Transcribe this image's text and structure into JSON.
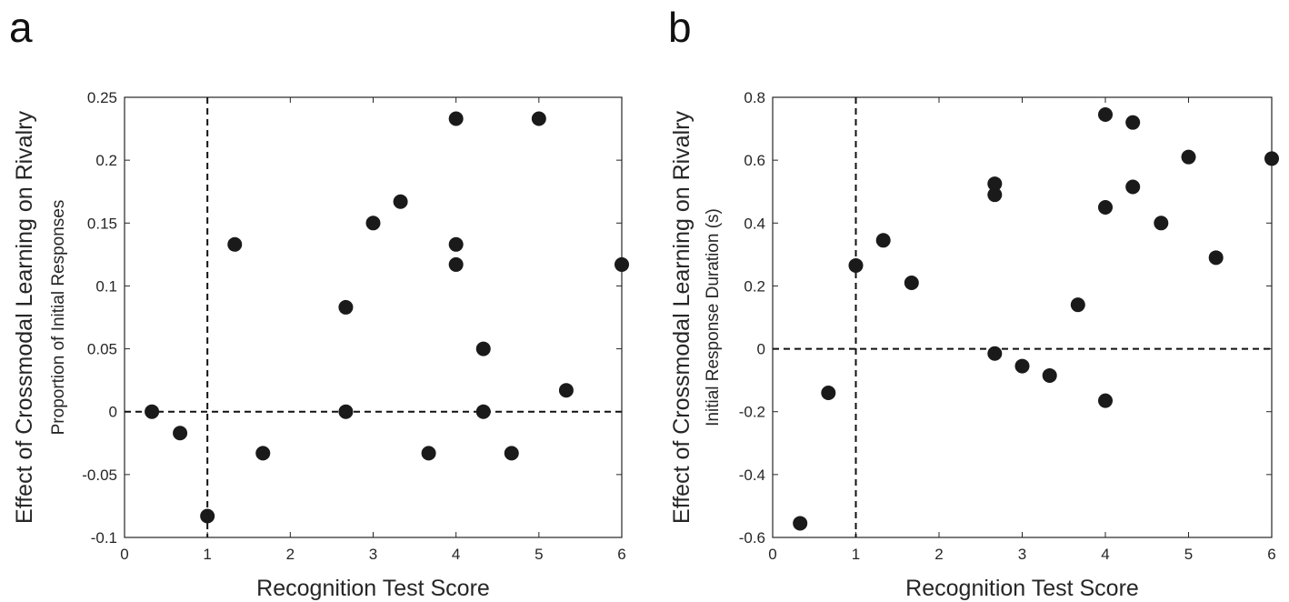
{
  "chart_data": [
    {
      "type": "scatter",
      "panel_label": "a",
      "xlabel": "Recognition Test Score",
      "ylabel": "Effect of Crossmodal Learning on Rivalry",
      "ylabel_sub": "Proportion of Initial Responses",
      "xlim": [
        0,
        6
      ],
      "ylim": [
        -0.1,
        0.25
      ],
      "xticks": [
        0,
        1,
        2,
        3,
        4,
        5,
        6
      ],
      "xtick_labels": [
        "0",
        "1",
        "2",
        "3",
        "4",
        "5",
        "6"
      ],
      "yticks": [
        -0.1,
        -0.05,
        0,
        0.05,
        0.1,
        0.15,
        0.2,
        0.25
      ],
      "ytick_labels": [
        "-0.1",
        "-0.05",
        "0",
        "0.05",
        "0.1",
        "0.15",
        "0.2",
        "0.25"
      ],
      "ref_x": 1,
      "ref_y": 0,
      "grid": false,
      "points": [
        {
          "x": 0.33,
          "y": 0.0
        },
        {
          "x": 0.67,
          "y": -0.017
        },
        {
          "x": 1.0,
          "y": -0.083
        },
        {
          "x": 1.33,
          "y": 0.133
        },
        {
          "x": 1.67,
          "y": -0.033
        },
        {
          "x": 2.67,
          "y": 0.083
        },
        {
          "x": 2.67,
          "y": 0.0
        },
        {
          "x": 3.0,
          "y": 0.15
        },
        {
          "x": 3.33,
          "y": 0.167
        },
        {
          "x": 3.67,
          "y": -0.033
        },
        {
          "x": 4.0,
          "y": 0.233
        },
        {
          "x": 4.0,
          "y": 0.133
        },
        {
          "x": 4.0,
          "y": 0.117
        },
        {
          "x": 4.33,
          "y": 0.05
        },
        {
          "x": 4.33,
          "y": 0.0
        },
        {
          "x": 4.67,
          "y": -0.033
        },
        {
          "x": 5.0,
          "y": 0.233
        },
        {
          "x": 5.33,
          "y": 0.017
        },
        {
          "x": 6.0,
          "y": 0.117
        }
      ],
      "colors": {
        "marker": "#1a1a1a",
        "axis": "#262626"
      }
    },
    {
      "type": "scatter",
      "panel_label": "b",
      "xlabel": "Recognition Test Score",
      "ylabel": "Effect of Crossmodal Learning on Rivalry",
      "ylabel_sub": "Initial Response Duration (s)",
      "xlim": [
        0,
        6
      ],
      "ylim": [
        -0.6,
        0.8
      ],
      "xticks": [
        0,
        1,
        2,
        3,
        4,
        5,
        6
      ],
      "xtick_labels": [
        "0",
        "1",
        "2",
        "3",
        "4",
        "5",
        "6"
      ],
      "yticks": [
        -0.6,
        -0.4,
        -0.2,
        0,
        0.2,
        0.4,
        0.6,
        0.8
      ],
      "ytick_labels": [
        "-0.6",
        "-0.4",
        "-0.2",
        "0",
        "0.2",
        "0.4",
        "0.6",
        "0.8"
      ],
      "ref_x": 1,
      "ref_y": 0,
      "grid": false,
      "points": [
        {
          "x": 0.33,
          "y": -0.555
        },
        {
          "x": 0.67,
          "y": -0.14
        },
        {
          "x": 1.0,
          "y": 0.265
        },
        {
          "x": 1.33,
          "y": 0.345
        },
        {
          "x": 1.67,
          "y": 0.21
        },
        {
          "x": 2.67,
          "y": 0.525
        },
        {
          "x": 2.67,
          "y": 0.49
        },
        {
          "x": 2.67,
          "y": -0.015
        },
        {
          "x": 3.0,
          "y": -0.055
        },
        {
          "x": 3.33,
          "y": -0.085
        },
        {
          "x": 3.67,
          "y": 0.14
        },
        {
          "x": 4.0,
          "y": 0.745
        },
        {
          "x": 4.0,
          "y": 0.45
        },
        {
          "x": 4.0,
          "y": -0.165
        },
        {
          "x": 4.33,
          "y": 0.72
        },
        {
          "x": 4.33,
          "y": 0.515
        },
        {
          "x": 4.67,
          "y": 0.4
        },
        {
          "x": 5.0,
          "y": 0.61
        },
        {
          "x": 5.33,
          "y": 0.29
        },
        {
          "x": 6.0,
          "y": 0.605
        }
      ],
      "colors": {
        "marker": "#1a1a1a",
        "axis": "#262626"
      }
    }
  ]
}
